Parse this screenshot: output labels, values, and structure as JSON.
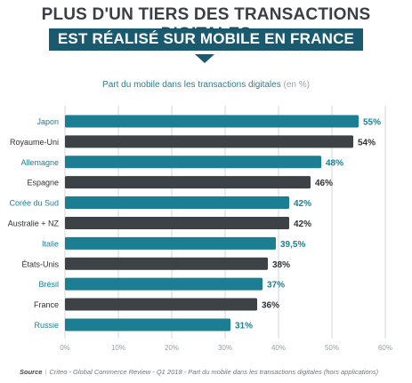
{
  "header": {
    "line1": "PLUS D'UN TIERS DES TRANSACTIONS DIGITALES",
    "line2": "EST RÉALISÉ SUR MOBILE EN FRANCE"
  },
  "chart_data": {
    "type": "bar",
    "orientation": "horizontal",
    "title": "Part du mobile dans les transactions digitales",
    "title_unit": "(en %)",
    "categories": [
      "Japon",
      "Royaume-Uni",
      "Allemagne",
      "Espagne",
      "Corée du Sud",
      "Australie + NZ",
      "Italie",
      "États-Unis",
      "Brésil",
      "France",
      "Russie"
    ],
    "values": [
      55,
      54,
      48,
      46,
      42,
      42,
      39.5,
      38,
      37,
      36,
      31
    ],
    "value_labels": [
      "55%",
      "54%",
      "48%",
      "46%",
      "42%",
      "42%",
      "39,5%",
      "38%",
      "37%",
      "36%",
      "31%"
    ],
    "xlim": [
      0,
      60
    ],
    "x_ticks": [
      "0%",
      "10%",
      "20%",
      "30%",
      "40%",
      "50%",
      "60%"
    ],
    "grid": true,
    "colors": {
      "teal": "#1b7e93",
      "dark": "#3d4247",
      "grid": "#d6d6d6"
    }
  },
  "footer": {
    "label": "Source",
    "text": "Criteo - Global Commerce Review - Q1 2018 - Part du mobile dans les transactions digitales (hors applications)"
  }
}
